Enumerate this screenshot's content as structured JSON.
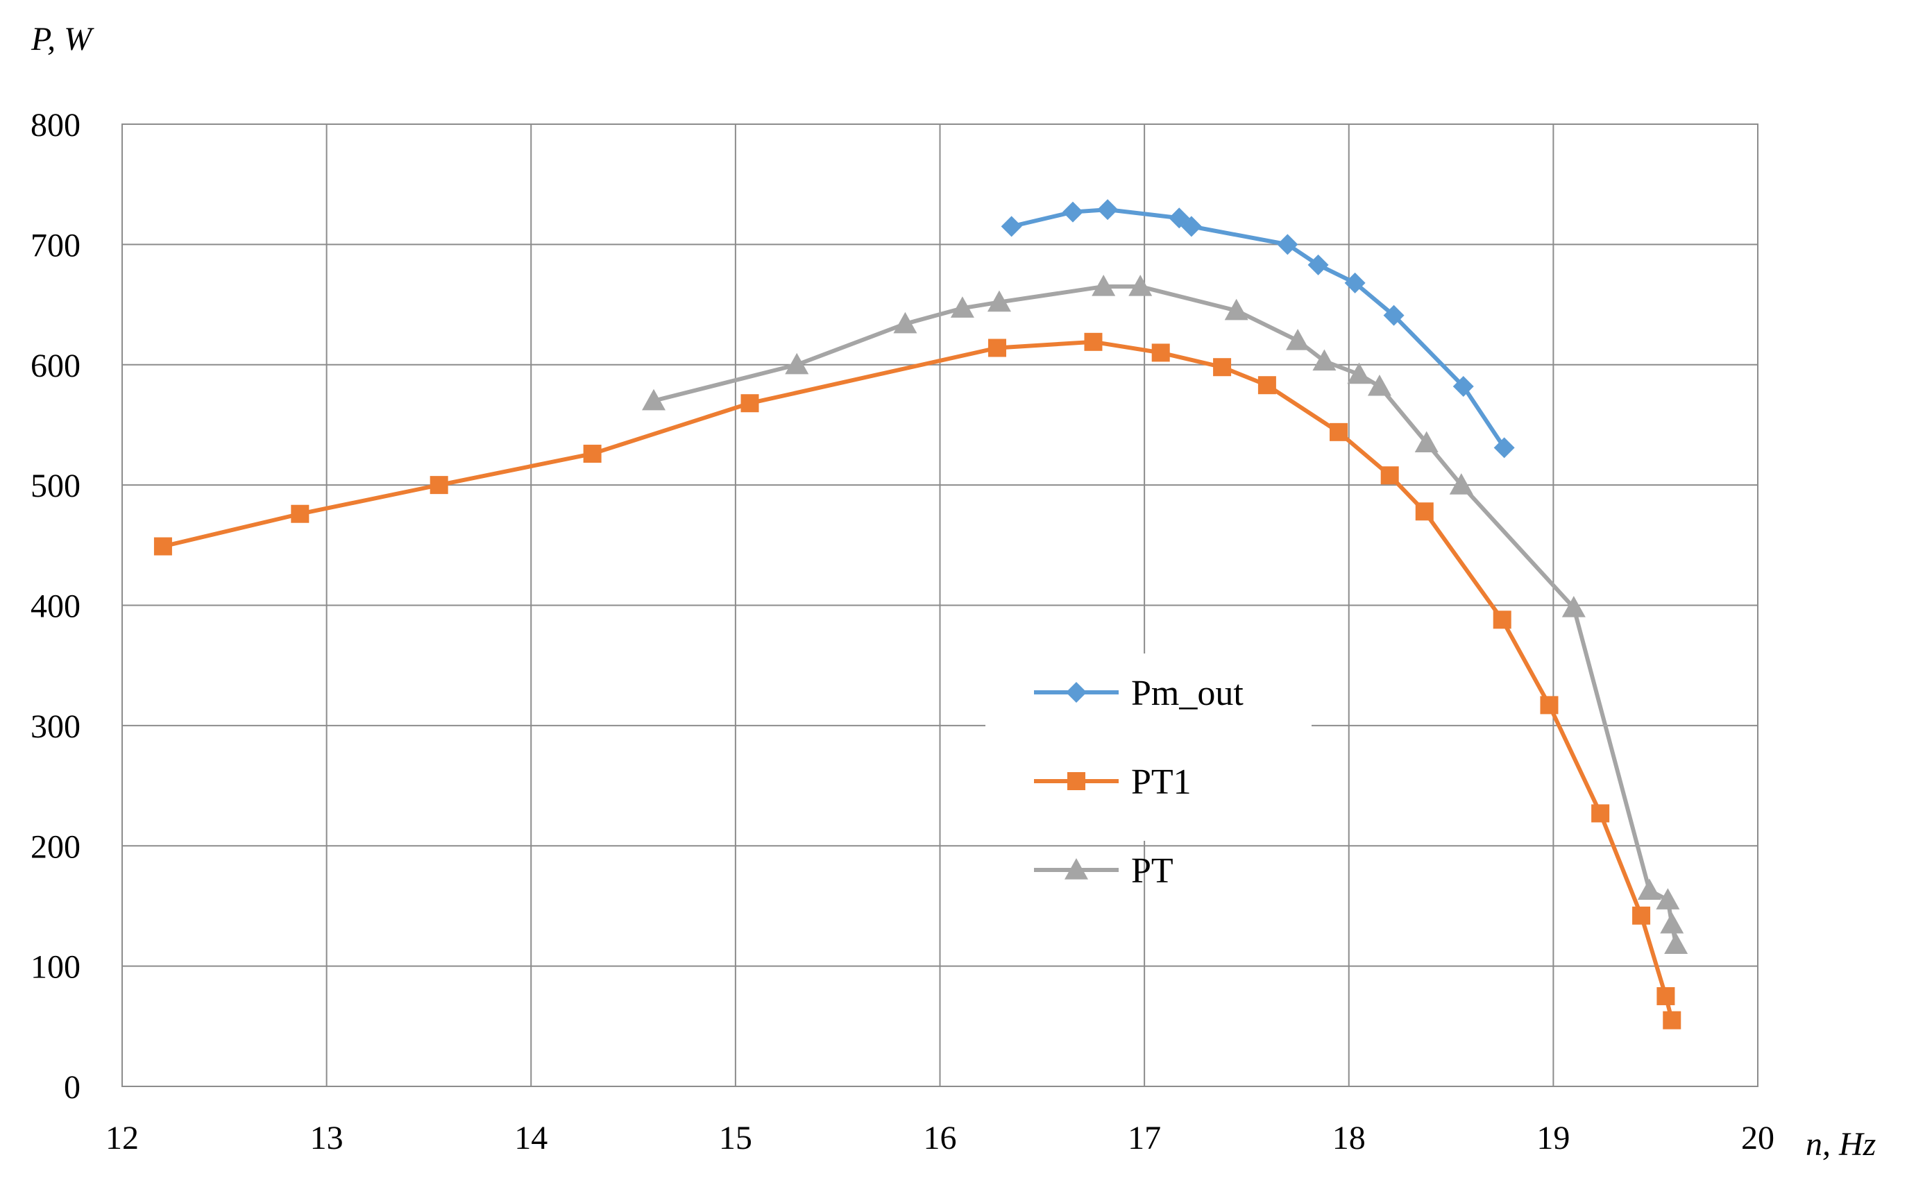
{
  "chart_data": {
    "type": "line",
    "title": "",
    "xlabel": "n, Hz",
    "ylabel": "P, W",
    "xlim": [
      12,
      20
    ],
    "ylim": [
      0,
      800
    ],
    "x_ticks": [
      12,
      13,
      14,
      15,
      16,
      17,
      18,
      19,
      20
    ],
    "y_ticks": [
      0,
      100,
      200,
      300,
      400,
      500,
      600,
      700,
      800
    ],
    "grid": true,
    "legend_position": "center-right",
    "series": [
      {
        "name": "Pm_out",
        "color": "#5b9bd5",
        "marker": "diamond",
        "x": [
          16.35,
          16.65,
          16.82,
          17.17,
          17.23,
          17.7,
          17.85,
          18.03,
          18.22,
          18.56,
          18.76
        ],
        "y": [
          715,
          727,
          729,
          722,
          715,
          700,
          683,
          668,
          641,
          582,
          531
        ]
      },
      {
        "name": "PT1",
        "color": "#ed7d31",
        "marker": "square",
        "x": [
          12.2,
          12.87,
          13.55,
          14.3,
          15.07,
          16.28,
          16.75,
          17.08,
          17.38,
          17.6,
          17.95,
          18.2,
          18.37,
          18.75,
          18.98,
          19.23,
          19.43,
          19.55,
          19.58
        ],
        "y": [
          449,
          476,
          500,
          526,
          568,
          614,
          619,
          610,
          598,
          583,
          544,
          508,
          478,
          388,
          317,
          227,
          142,
          75,
          55
        ]
      },
      {
        "name": "PT",
        "color": "#a5a5a5",
        "marker": "triangle",
        "x": [
          14.6,
          15.3,
          15.83,
          16.11,
          16.29,
          16.8,
          16.98,
          17.45,
          17.75,
          17.88,
          18.05,
          18.15,
          18.38,
          18.55,
          19.1,
          19.47,
          19.56,
          19.58,
          19.6
        ],
        "y": [
          570,
          600,
          634,
          647,
          652,
          665,
          665,
          645,
          620,
          603,
          592,
          582,
          535,
          500,
          398,
          163,
          155,
          135,
          118
        ]
      }
    ]
  }
}
